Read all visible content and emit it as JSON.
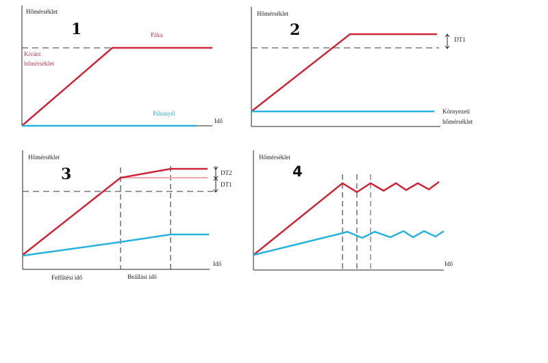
{
  "colors": {
    "heating_element": "#cc2436",
    "handle": "#27b2de",
    "extra": "#f2a6ae"
  },
  "panels": [
    {
      "number": "1",
      "y_label": "Hőmérséklet",
      "x_label": "Idő",
      "red_label": "Páka",
      "blue_label": "Pákanyél",
      "target_label_line1": "Kívánt",
      "target_label_line2": "hőmérséklet"
    },
    {
      "number": "2",
      "y_label": "Hőmérséklet",
      "delta_label": "DT1",
      "ambient_label_line1": "Környezeti",
      "ambient_label_line2": "hőmérséklet"
    },
    {
      "number": "3",
      "y_label": "Hőmérséklet",
      "x_label": "Idő",
      "delta2_label": "DT2",
      "delta1_label": "DT1",
      "phase1_label": "Felfűtési idő",
      "phase2_label": "Beállási idő"
    },
    {
      "number": "4",
      "y_label": "Hőmérséklet",
      "x_label": "Idő"
    }
  ]
}
